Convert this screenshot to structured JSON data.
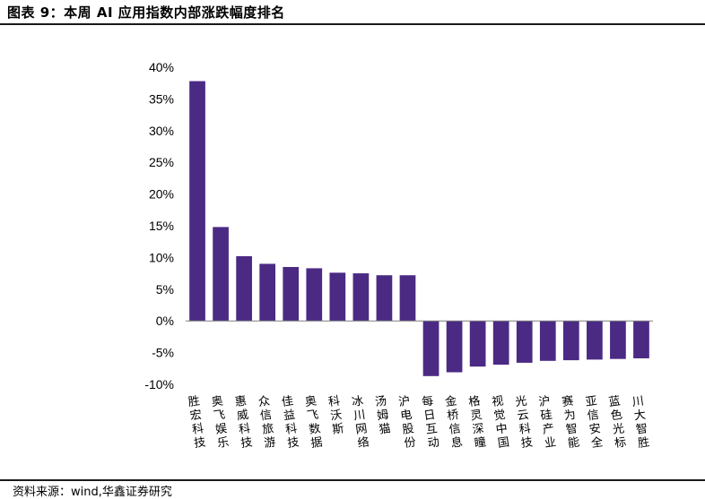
{
  "figure": {
    "title": "图表 9：本周 AI 应用指数内部涨跌幅度排名",
    "source": "资料来源：wind,华鑫证券研究"
  },
  "colors": {
    "bar": "#4b2a84",
    "axis": "#7f7f7f"
  },
  "chart_data": {
    "type": "bar",
    "title": "",
    "xlabel": "",
    "ylabel": "",
    "ylim": [
      -10,
      40
    ],
    "yticks": [
      "40%",
      "35%",
      "30%",
      "25%",
      "20%",
      "15%",
      "10%",
      "5%",
      "0%",
      "-5%",
      "-10%"
    ],
    "ytick_values": [
      40,
      35,
      30,
      25,
      20,
      15,
      10,
      5,
      0,
      -5,
      -10
    ],
    "grid": false,
    "legend": "none",
    "categories": [
      "胜宏科技",
      "奥飞娱乐",
      "惠威科技",
      "众信旅游",
      "佳益科技",
      "奥飞数据",
      "科沃斯",
      "冰川网络",
      "汤姆猫",
      "沪电股份",
      "每日互动",
      "金桥信息",
      "格灵深瞳",
      "视觉中国",
      "光云科技",
      "沪硅产业",
      "赛为智能",
      "亚信安全",
      "蓝色光标",
      "川大智胜"
    ],
    "values": [
      37.8,
      14.8,
      10.2,
      9.0,
      8.5,
      8.3,
      7.6,
      7.5,
      7.2,
      7.2,
      -8.7,
      -8.1,
      -7.2,
      -6.9,
      -6.6,
      -6.3,
      -6.2,
      -6.1,
      -6.0,
      -5.9
    ]
  }
}
